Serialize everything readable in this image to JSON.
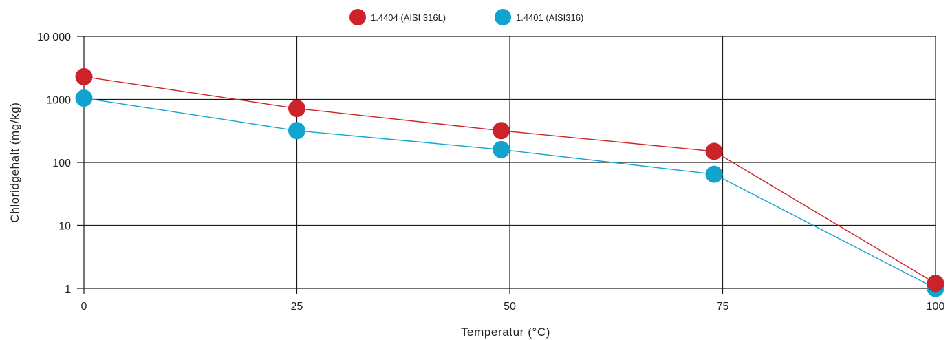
{
  "chart_data": {
    "type": "line",
    "title": "",
    "xlabel": "Temperatur (°C)",
    "ylabel": "Chloridgehalt (mg/kg)",
    "y_scale": "log",
    "xlim": [
      0,
      100
    ],
    "ylim": [
      1,
      10000
    ],
    "x_ticks": [
      {
        "value": 0,
        "label": "0"
      },
      {
        "value": 25,
        "label": "25"
      },
      {
        "value": 50,
        "label": "50"
      },
      {
        "value": 75,
        "label": "75"
      },
      {
        "value": 100,
        "label": "100"
      }
    ],
    "y_ticks": [
      {
        "value": 1,
        "label": "1"
      },
      {
        "value": 10,
        "label": "10"
      },
      {
        "value": 100,
        "label": "100"
      },
      {
        "value": 1000,
        "label": "1000"
      },
      {
        "value": 10000,
        "label": "10 000"
      }
    ],
    "grid": true,
    "legend_position": "top-center",
    "series": [
      {
        "name": "1.4404 (AISI 316L)",
        "color": "#cc2229",
        "x": [
          0,
          25,
          49,
          74,
          100
        ],
        "y": [
          2300,
          720,
          320,
          150,
          1.2
        ]
      },
      {
        "name": "1.4401 (AISI316)",
        "color": "#12a3cf",
        "x": [
          0,
          25,
          49,
          74,
          100
        ],
        "y": [
          1050,
          320,
          160,
          65,
          1
        ]
      }
    ]
  }
}
